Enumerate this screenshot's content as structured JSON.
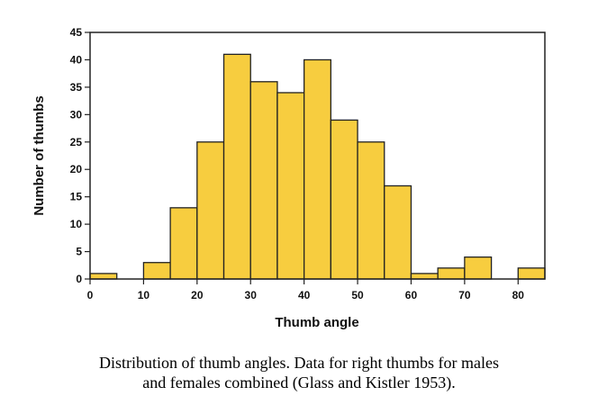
{
  "chart_data": {
    "type": "bar",
    "bins": [
      {
        "start": 0,
        "end": 5,
        "value": 1
      },
      {
        "start": 10,
        "end": 15,
        "value": 3
      },
      {
        "start": 15,
        "end": 20,
        "value": 13
      },
      {
        "start": 20,
        "end": 25,
        "value": 25
      },
      {
        "start": 25,
        "end": 30,
        "value": 41
      },
      {
        "start": 30,
        "end": 35,
        "value": 36
      },
      {
        "start": 35,
        "end": 40,
        "value": 34
      },
      {
        "start": 40,
        "end": 45,
        "value": 40
      },
      {
        "start": 45,
        "end": 50,
        "value": 29
      },
      {
        "start": 50,
        "end": 55,
        "value": 25
      },
      {
        "start": 55,
        "end": 60,
        "value": 17
      },
      {
        "start": 60,
        "end": 65,
        "value": 1
      },
      {
        "start": 65,
        "end": 70,
        "value": 2
      },
      {
        "start": 70,
        "end": 75,
        "value": 4
      },
      {
        "start": 80,
        "end": 85,
        "value": 2
      }
    ],
    "xlabel": "Thumb angle",
    "ylabel": "Number of thumbs",
    "xlim": [
      0,
      85
    ],
    "ylim": [
      0,
      45
    ],
    "xticks": [
      0,
      10,
      20,
      30,
      40,
      50,
      60,
      70,
      80
    ],
    "yticks": [
      0,
      5,
      10,
      15,
      20,
      25,
      30,
      35,
      40,
      45
    ],
    "grid": false,
    "bar_color": "#f7cd3f"
  },
  "caption": {
    "line1": "Distribution of thumb angles. Data for right thumbs for males",
    "line2": "and females combined (Glass and Kistler 1953)."
  }
}
